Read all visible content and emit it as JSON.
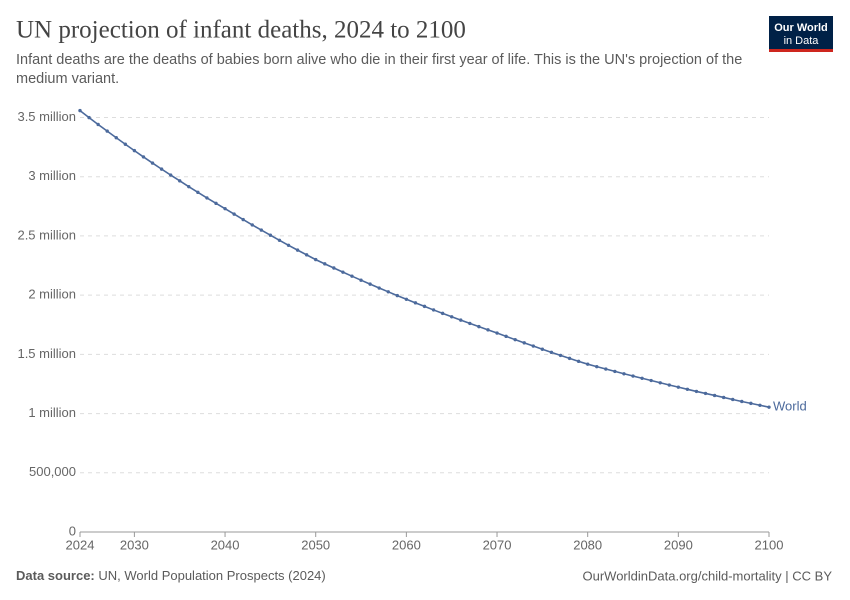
{
  "chart_data": {
    "type": "line",
    "title": "UN projection of infant deaths, 2024 to 2100",
    "subtitle": "Infant deaths are the deaths of babies born alive who die in their first year of life. This is the UN's projection of the medium variant.",
    "logo": [
      "Our World",
      "in Data"
    ],
    "source_label": "Data source:",
    "source": "UN, World Population Prospects (2024)",
    "credit": "OurWorldinData.org/child-mortality | CC BY",
    "x": [
      2024,
      2025,
      2026,
      2027,
      2028,
      2029,
      2030,
      2031,
      2032,
      2033,
      2034,
      2035,
      2036,
      2037,
      2038,
      2039,
      2040,
      2041,
      2042,
      2043,
      2044,
      2045,
      2046,
      2047,
      2048,
      2049,
      2050,
      2051,
      2052,
      2053,
      2054,
      2055,
      2056,
      2057,
      2058,
      2059,
      2060,
      2061,
      2062,
      2063,
      2064,
      2065,
      2066,
      2067,
      2068,
      2069,
      2070,
      2071,
      2072,
      2073,
      2074,
      2075,
      2076,
      2077,
      2078,
      2079,
      2080,
      2081,
      2082,
      2083,
      2084,
      2085,
      2086,
      2087,
      2088,
      2089,
      2090,
      2091,
      2092,
      2093,
      2094,
      2095,
      2096,
      2097,
      2098,
      2099,
      2100
    ],
    "series": [
      {
        "name": "World",
        "color": "#4c6a9c",
        "values": [
          3558000,
          3499000,
          3441000,
          3385000,
          3329000,
          3274000,
          3220000,
          3167000,
          3115000,
          3064000,
          3014000,
          2965000,
          2916000,
          2868000,
          2821000,
          2775000,
          2730000,
          2684000,
          2638000,
          2593000,
          2549000,
          2506000,
          2463000,
          2421000,
          2380000,
          2340000,
          2300000,
          2264000,
          2229000,
          2194000,
          2160000,
          2126000,
          2093000,
          2060000,
          2028000,
          1996000,
          1965000,
          1935000,
          1905000,
          1875000,
          1846000,
          1817000,
          1789000,
          1761000,
          1734000,
          1707000,
          1680000,
          1652000,
          1624000,
          1597000,
          1570000,
          1543000,
          1517000,
          1491000,
          1466000,
          1441000,
          1417000,
          1396000,
          1376000,
          1356000,
          1336000,
          1317000,
          1298000,
          1279000,
          1260000,
          1241000,
          1223000,
          1205000,
          1187000,
          1170000,
          1153000,
          1136000,
          1119000,
          1102000,
          1086000,
          1070000,
          1054000
        ]
      }
    ],
    "xlim": [
      2024,
      2100
    ],
    "xticks": [
      2024,
      2030,
      2040,
      2050,
      2060,
      2070,
      2080,
      2090,
      2100
    ],
    "ylim": [
      0,
      3580000
    ],
    "yticks": [
      0,
      {
        "value": 500000,
        "label": "500,000"
      },
      {
        "value": 1000000,
        "label": "1 million"
      },
      {
        "value": 1500000,
        "label": "1.5 million"
      },
      {
        "value": 2000000,
        "label": "2 million"
      },
      {
        "value": 2500000,
        "label": "2.5 million"
      },
      {
        "value": 3000000,
        "label": "3 million"
      },
      {
        "value": 3500000,
        "label": "3.5 million"
      }
    ],
    "grid": true
  }
}
